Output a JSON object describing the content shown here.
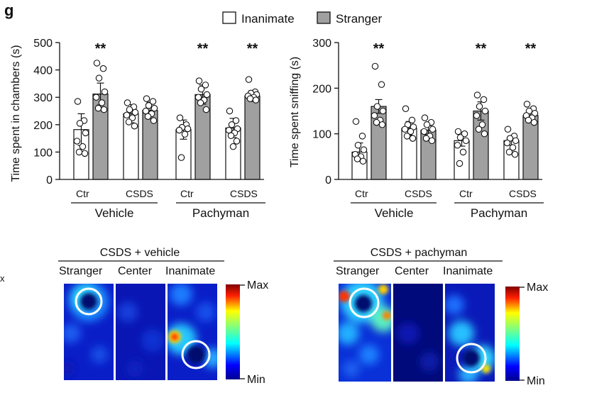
{
  "panel_label": "g",
  "legend": [
    {
      "label": "Inanimate",
      "color": "#ffffff"
    },
    {
      "label": "Stranger",
      "color": "#a0a0a0"
    }
  ],
  "stray_text": "x",
  "groups": {
    "vehicle": "Vehicle",
    "pachyman": "Pachyman"
  },
  "subgroups": [
    "Ctr",
    "CSDS",
    "Ctr",
    "CSDS"
  ],
  "chart_data": [
    {
      "type": "bar",
      "title": "",
      "ylabel": "Time spent in chambers (s)",
      "ylim": [
        0,
        500
      ],
      "yticks": [
        "0",
        "100",
        "200",
        "300",
        "400",
        "500"
      ],
      "categories": [
        "Vehicle Ctr",
        "Vehicle CSDS",
        "Pachyman Ctr",
        "Pachyman CSDS"
      ],
      "series": [
        {
          "name": "Inanimate",
          "values": [
            182,
            240,
            182,
            188
          ],
          "errors": [
            58,
            33,
            35,
            35
          ],
          "points": [
            [
              285,
              215,
              205,
              170,
              140,
              120,
              100,
              95
            ],
            [
              280,
              265,
              255,
              245,
              235,
              225,
              210,
              195
            ],
            [
              225,
              200,
              190,
              185,
              180,
              165,
              80
            ],
            [
              250,
              215,
              200,
              185,
              180,
              170,
              160,
              140,
              120
            ]
          ]
        },
        {
          "name": "Stranger",
          "values": [
            312,
            252,
            310,
            305
          ],
          "errors": [
            40,
            30,
            35,
            20
          ],
          "points": [
            [
              425,
              405,
              370,
              320,
              300,
              280,
              260,
              255
            ],
            [
              295,
              285,
              270,
              260,
              250,
              240,
              230,
              215
            ],
            [
              360,
              345,
              330,
              310,
              300,
              290,
              280,
              255
            ],
            [
              365,
              320,
              315,
              310,
              305,
              300,
              295,
              290
            ]
          ]
        }
      ],
      "significance": [
        "**",
        "",
        "**",
        "**"
      ]
    },
    {
      "type": "bar",
      "title": "",
      "ylabel": "Time spent sniffing (s)",
      "ylim": [
        0,
        300
      ],
      "yticks": [
        "0",
        "100",
        "200",
        "300"
      ],
      "categories": [
        "Vehicle Ctr",
        "Vehicle CSDS",
        "Pachyman Ctr",
        "Pachyman CSDS"
      ],
      "series": [
        {
          "name": "Inanimate",
          "values": [
            60,
            112,
            85,
            85
          ],
          "errors": [
            20,
            15,
            12,
            10
          ],
          "points": [
            [
              127,
              95,
              75,
              65,
              55,
              50,
              45,
              40
            ],
            [
              155,
              130,
              120,
              115,
              110,
              105,
              95,
              90
            ],
            [
              105,
              100,
              92,
              85,
              75,
              60,
              35
            ],
            [
              110,
              95,
              90,
              85,
              80,
              70,
              60,
              55
            ]
          ]
        },
        {
          "name": "Stranger",
          "values": [
            160,
            108,
            150,
            140
          ],
          "errors": [
            15,
            10,
            20,
            8
          ],
          "points": [
            [
              248,
              208,
              160,
              150,
              140,
              130,
              125,
              120
            ],
            [
              135,
              125,
              120,
              110,
              105,
              95,
              90,
              85
            ],
            [
              185,
              175,
              160,
              150,
              140,
              120,
              110,
              100
            ],
            [
              165,
              155,
              150,
              145,
              140,
              135,
              130,
              125
            ]
          ]
        }
      ],
      "significance": [
        "**",
        "",
        "**",
        "**"
      ]
    }
  ],
  "heatmaps": [
    {
      "title": "CSDS + vehicle",
      "zones": [
        "Stranger",
        "Center",
        "Inanimate"
      ],
      "scale_max": "Max",
      "scale_min": "Min"
    },
    {
      "title": "CSDS + pachyman",
      "zones": [
        "Stranger",
        "Center",
        "Inanimate"
      ],
      "scale_max": "Max",
      "scale_min": "Min"
    }
  ]
}
